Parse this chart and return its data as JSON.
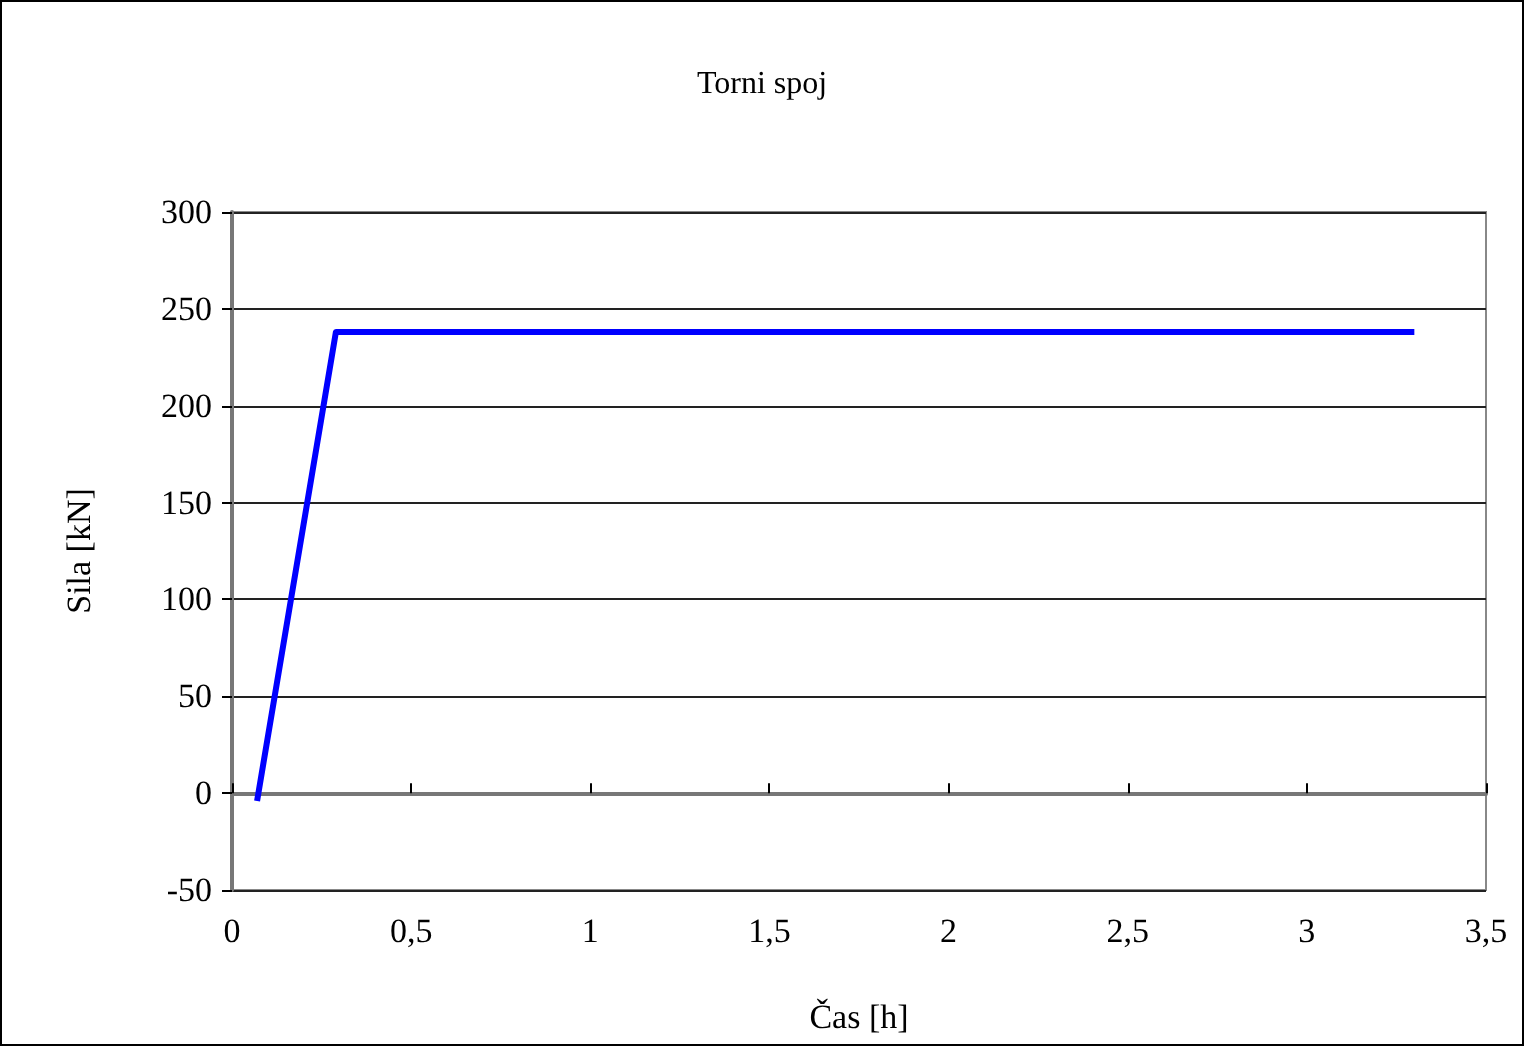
{
  "chart_data": {
    "type": "line",
    "title": "Torni spoj",
    "xlabel": "Čas [h]",
    "ylabel": "Sila [kN]",
    "series": [
      {
        "color": "#0000ff",
        "x": [
          0.07,
          0.29,
          3.3
        ],
        "values": [
          -4,
          238,
          238
        ]
      }
    ],
    "xlim": [
      0,
      3.5
    ],
    "xticks": [
      0,
      {
        "value": 0.5,
        "label": "0,5"
      },
      1,
      {
        "value": 1.5,
        "label": "1,5"
      },
      2,
      {
        "value": 2.5,
        "label": "2,5"
      },
      3,
      {
        "value": 3.5,
        "label": "3,5"
      }
    ],
    "ylim": [
      -50,
      300
    ],
    "yticks": [
      -50,
      0,
      50,
      100,
      150,
      200,
      250,
      300
    ],
    "grid": "y",
    "marker": "none",
    "line_style": "solid"
  }
}
